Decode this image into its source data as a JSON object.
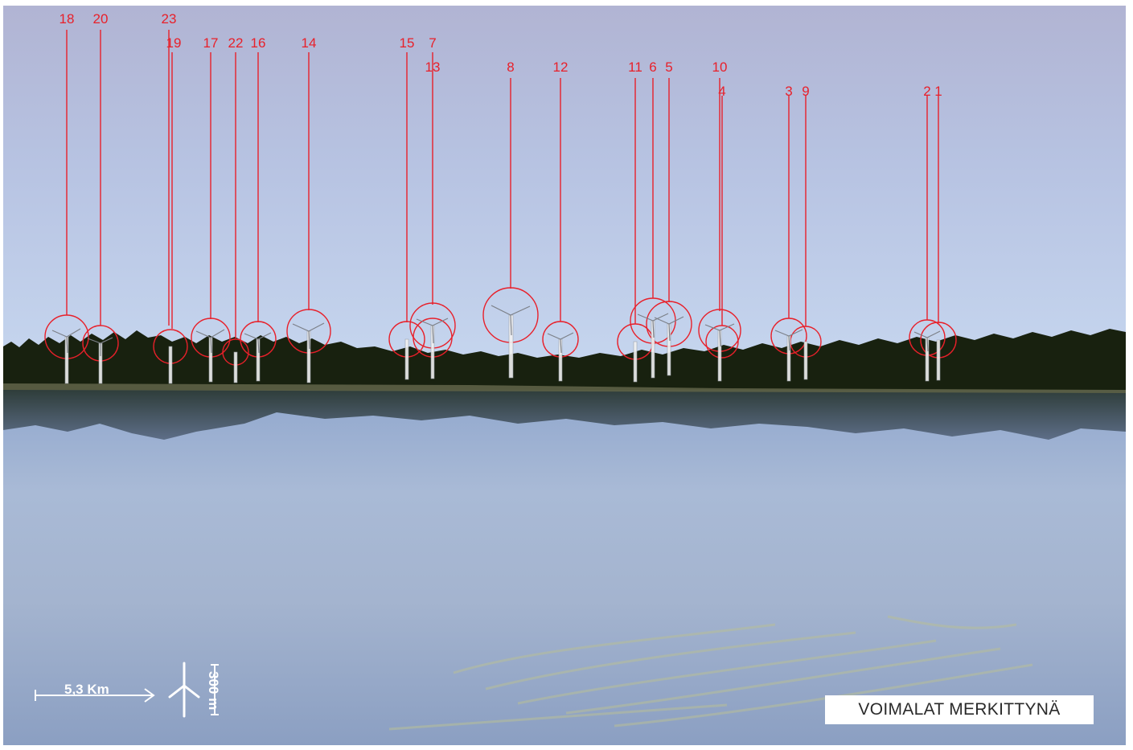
{
  "caption": {
    "text": "VOIMALAT MERKITTYNÄ"
  },
  "scale_bar": {
    "distance_label": "5,3 Km",
    "height_label": "300 m",
    "icon": "wind-turbine-icon"
  },
  "colors": {
    "marker": "#e8202a",
    "sky_top": "#b3b6d4",
    "sky_bottom": "#c3d3ec",
    "forest": "#17200f",
    "water": "#a3b3cf"
  },
  "turbines": [
    "18",
    "20",
    "23",
    "19",
    "17",
    "22",
    "16",
    "14",
    "15",
    "7",
    "13",
    "8",
    "12",
    "11",
    "6",
    "5",
    "10",
    "4",
    "3",
    "9",
    "2",
    "1"
  ]
}
